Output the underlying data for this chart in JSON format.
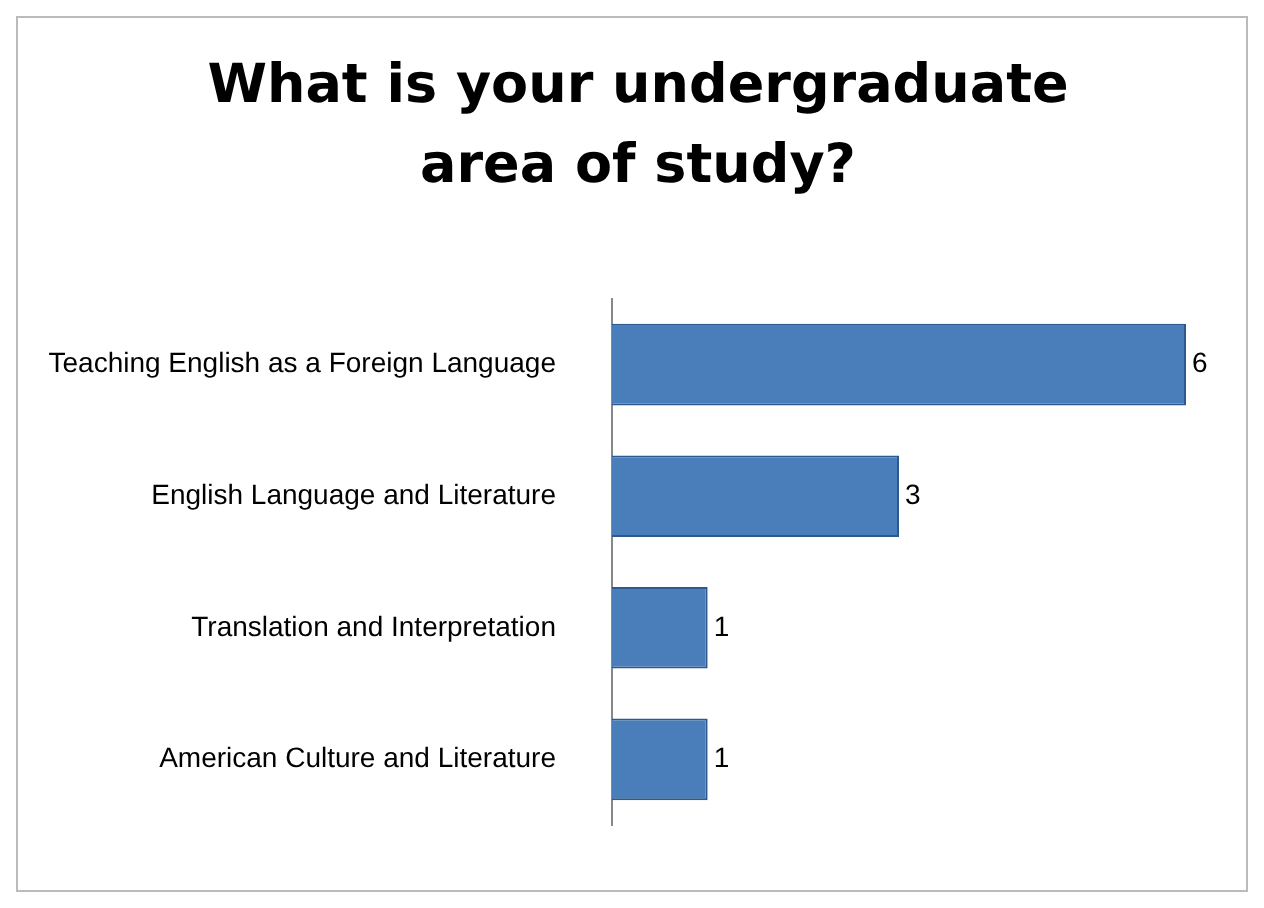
{
  "chart_data": {
    "type": "bar",
    "orientation": "horizontal",
    "title": "What is your undergraduate area of study?",
    "categories": [
      "Teaching English as a Foreign Language",
      "English Language and Literature",
      "Translation and Interpretation",
      "American Culture and Literature"
    ],
    "values": [
      6,
      3,
      1,
      1
    ],
    "color": "#4a7ebb",
    "data_labels": true,
    "grid": false,
    "legend": false
  }
}
